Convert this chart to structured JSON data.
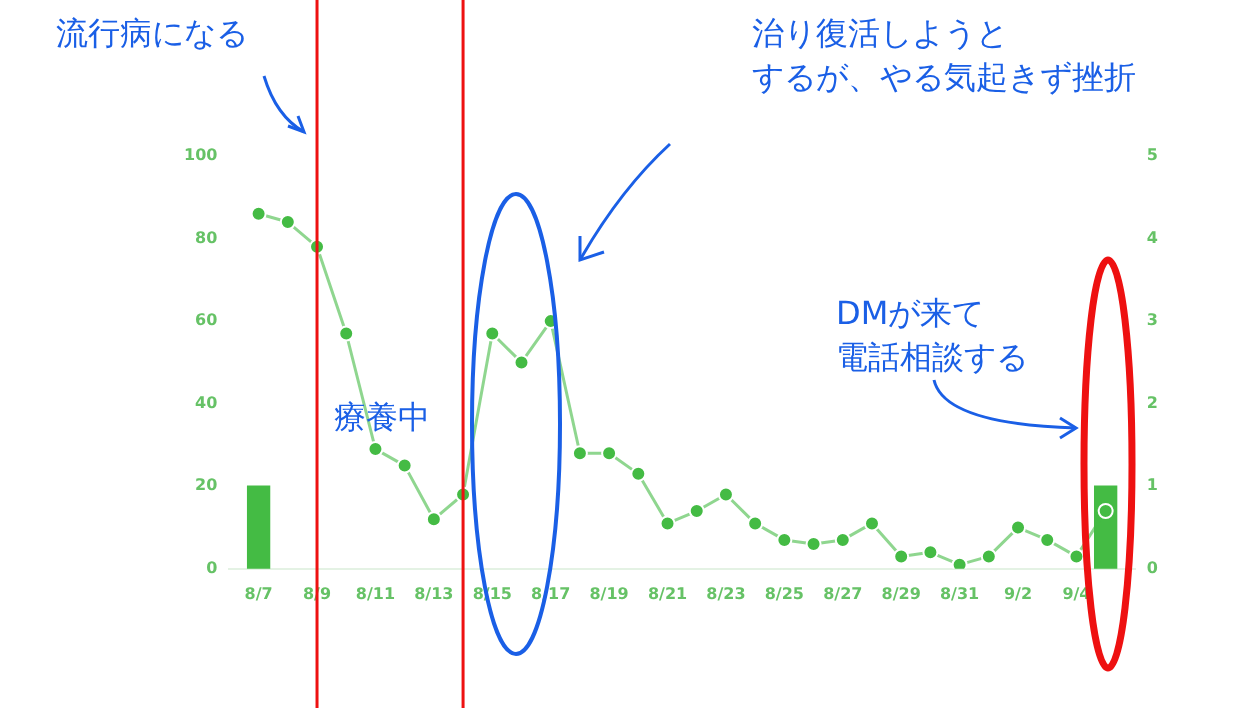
{
  "chart_data": {
    "type": "line",
    "x": [
      "--08-07",
      "--08-08",
      "--08-09",
      "--08-10",
      "--08-11",
      "--08-12",
      "--08-13",
      "--08-14",
      "--08-15",
      "--08-16",
      "--08-17",
      "--08-18",
      "--08-19",
      "--08-20",
      "--08-21",
      "--08-22",
      "--08-23",
      "--08-24",
      "--08-25",
      "--08-26",
      "--08-27",
      "--08-28",
      "--08-29",
      "--08-30",
      "--08-31",
      "--09-01",
      "--09-02",
      "--09-03",
      "--09-04",
      "--09-05"
    ],
    "series": [
      {
        "color": "#44bb44",
        "values": [
          86,
          84,
          78,
          57,
          29,
          25,
          12,
          18,
          57,
          50,
          60,
          28,
          28,
          23,
          11,
          14,
          18,
          11,
          7,
          6,
          7,
          11,
          3,
          4,
          1,
          3,
          10,
          7,
          3,
          14
        ]
      },
      {
        "type": "bar",
        "axis": "y2",
        "color": "#44bb44",
        "values": [
          1,
          null,
          null,
          null,
          null,
          null,
          null,
          null,
          null,
          null,
          null,
          null,
          null,
          null,
          null,
          null,
          null,
          null,
          null,
          null,
          null,
          null,
          null,
          null,
          null,
          null,
          null,
          null,
          null,
          1
        ]
      }
    ],
    "xticks": [
      {
        "value": "--08-07",
        "label": "8/7"
      },
      {
        "value": "--08-09",
        "label": "8/9"
      },
      {
        "value": "--08-11",
        "label": "8/11"
      },
      {
        "value": "--08-13",
        "label": "8/13"
      },
      {
        "value": "--08-15",
        "label": "8/15"
      },
      {
        "value": "--08-17",
        "label": "8/17"
      },
      {
        "value": "--08-19",
        "label": "8/19"
      },
      {
        "value": "--08-21",
        "label": "8/21"
      },
      {
        "value": "--08-23",
        "label": "8/23"
      },
      {
        "value": "--08-25",
        "label": "8/25"
      },
      {
        "value": "--08-27",
        "label": "8/27"
      },
      {
        "value": "--08-29",
        "label": "8/29"
      },
      {
        "value": "--08-31",
        "label": "8/31"
      },
      {
        "value": "--09-02",
        "label": "9/2"
      },
      {
        "value": "--09-04",
        "label": "9/4"
      }
    ],
    "xlim": [
      "--08-06",
      "--09-06"
    ],
    "ylim": [
      0,
      100
    ],
    "yticks": [
      0,
      20,
      40,
      60,
      80,
      100
    ],
    "y2lim": [
      0,
      5
    ],
    "y2ticks": [
      0,
      1,
      2,
      3,
      4,
      5
    ],
    "ref_lines": [
      {
        "axis": "x",
        "value": "--08-09",
        "color": "#ee1111"
      },
      {
        "axis": "x",
        "value": "--08-14",
        "color": "#ee1111"
      }
    ],
    "annotations": [
      "流行病になる",
      "治り復活しようとするが、やる気起きず挫折",
      "療養中",
      "DMが来て電話相談する"
    ],
    "grid": false,
    "legend": false,
    "marker": "circle",
    "line_style": "solid"
  }
}
